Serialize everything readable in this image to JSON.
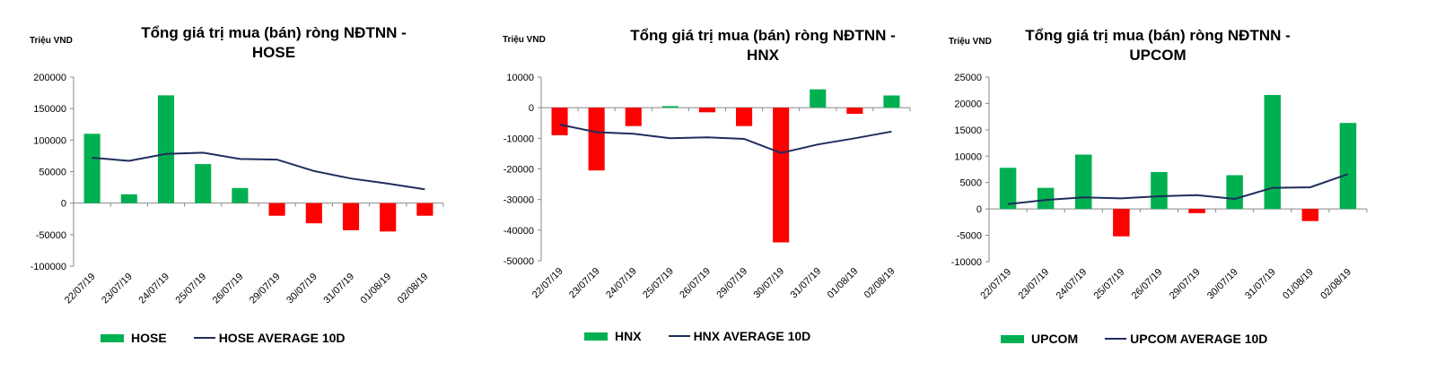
{
  "colors": {
    "positive": "#00b050",
    "negative": "#ff0000",
    "average": "#1f2d5c",
    "axis": "#888888"
  },
  "charts": [
    {
      "id": "hose",
      "unit_label": "Triệu VND",
      "title_line1": "Tổng giá trị mua (bán) ròng NĐTNN -",
      "title_line2": "HOSE",
      "chart_data": {
        "type": "bar",
        "categories": [
          "22/07/19",
          "23/07/19",
          "24/07/19",
          "25/07/19",
          "26/07/19",
          "29/07/19",
          "30/07/19",
          "31/07/19",
          "01/08/19",
          "02/08/19"
        ],
        "series": [
          {
            "name": "HOSE",
            "type": "bar",
            "values": [
              110000,
              14000,
              171000,
              62000,
              24000,
              -20000,
              -32000,
              -43000,
              -45000,
              -20000
            ]
          },
          {
            "name": "HOSE AVERAGE 10D",
            "type": "line",
            "values": [
              72000,
              67000,
              78000,
              80000,
              70000,
              69000,
              51000,
              39000,
              31000,
              22000
            ]
          }
        ],
        "ylim": [
          -100000,
          200000
        ],
        "yticks": [
          -100000,
          -50000,
          0,
          50000,
          100000,
          150000,
          200000
        ],
        "ytick_labels": [
          "-100000",
          "-50000",
          "0",
          "50000",
          "100000",
          "150000",
          "200000"
        ],
        "legend": {
          "bar": "HOSE",
          "line": "HOSE AVERAGE 10D"
        }
      }
    },
    {
      "id": "hnx",
      "unit_label": "Triệu VND",
      "title_line1": "Tổng giá trị mua (bán) ròng NĐTNN -",
      "title_line2": "HNX",
      "chart_data": {
        "type": "bar",
        "categories": [
          "22/07/19",
          "23/07/19",
          "24/07/19",
          "25/07/19",
          "26/07/19",
          "29/07/19",
          "30/07/19",
          "31/07/19",
          "01/08/19",
          "02/08/19"
        ],
        "series": [
          {
            "name": "HNX",
            "type": "bar",
            "values": [
              -9000,
              -20500,
              -6000,
              500,
              -1500,
              -6000,
              -44000,
              6000,
              -2000,
              4000
            ]
          },
          {
            "name": "HNX AVERAGE 10D",
            "type": "line",
            "values": [
              -5500,
              -8000,
              -8500,
              -10000,
              -9700,
              -10200,
              -14800,
              -12000,
              -10000,
              -7800
            ]
          }
        ],
        "ylim": [
          -50000,
          10000
        ],
        "yticks": [
          -50000,
          -40000,
          -30000,
          -20000,
          -10000,
          0,
          10000
        ],
        "ytick_labels": [
          "-50000",
          "-40000",
          "-30000",
          "-20000",
          "-10000",
          "0",
          "10000"
        ],
        "legend": {
          "bar": "HNX",
          "line": "HNX AVERAGE 10D"
        }
      }
    },
    {
      "id": "upcom",
      "unit_label": "Triệu VND",
      "title_line1": "Tổng giá trị mua (bán) ròng NĐTNN -",
      "title_line2": "UPCOM",
      "chart_data": {
        "type": "bar",
        "categories": [
          "22/07/19",
          "23/07/19",
          "24/07/19",
          "25/07/19",
          "26/07/19",
          "29/07/19",
          "30/07/19",
          "31/07/19",
          "01/08/19",
          "02/08/19"
        ],
        "series": [
          {
            "name": "UPCOM",
            "type": "bar",
            "values": [
              7800,
              4000,
              10300,
              -5200,
              7000,
              -800,
              6400,
              21600,
              -2300,
              16300
            ]
          },
          {
            "name": "UPCOM AVERAGE 10D",
            "type": "line",
            "values": [
              900,
              1700,
              2200,
              2000,
              2400,
              2600,
              1900,
              4000,
              4100,
              6600
            ]
          }
        ],
        "ylim": [
          -10000,
          25000
        ],
        "yticks": [
          -10000,
          -5000,
          0,
          5000,
          10000,
          15000,
          20000,
          25000
        ],
        "ytick_labels": [
          "-10000",
          "-5000",
          "0",
          "5000",
          "10000",
          "15000",
          "20000",
          "25000"
        ],
        "legend": {
          "bar": "UPCOM",
          "line": "UPCOM AVERAGE 10D"
        }
      }
    }
  ]
}
